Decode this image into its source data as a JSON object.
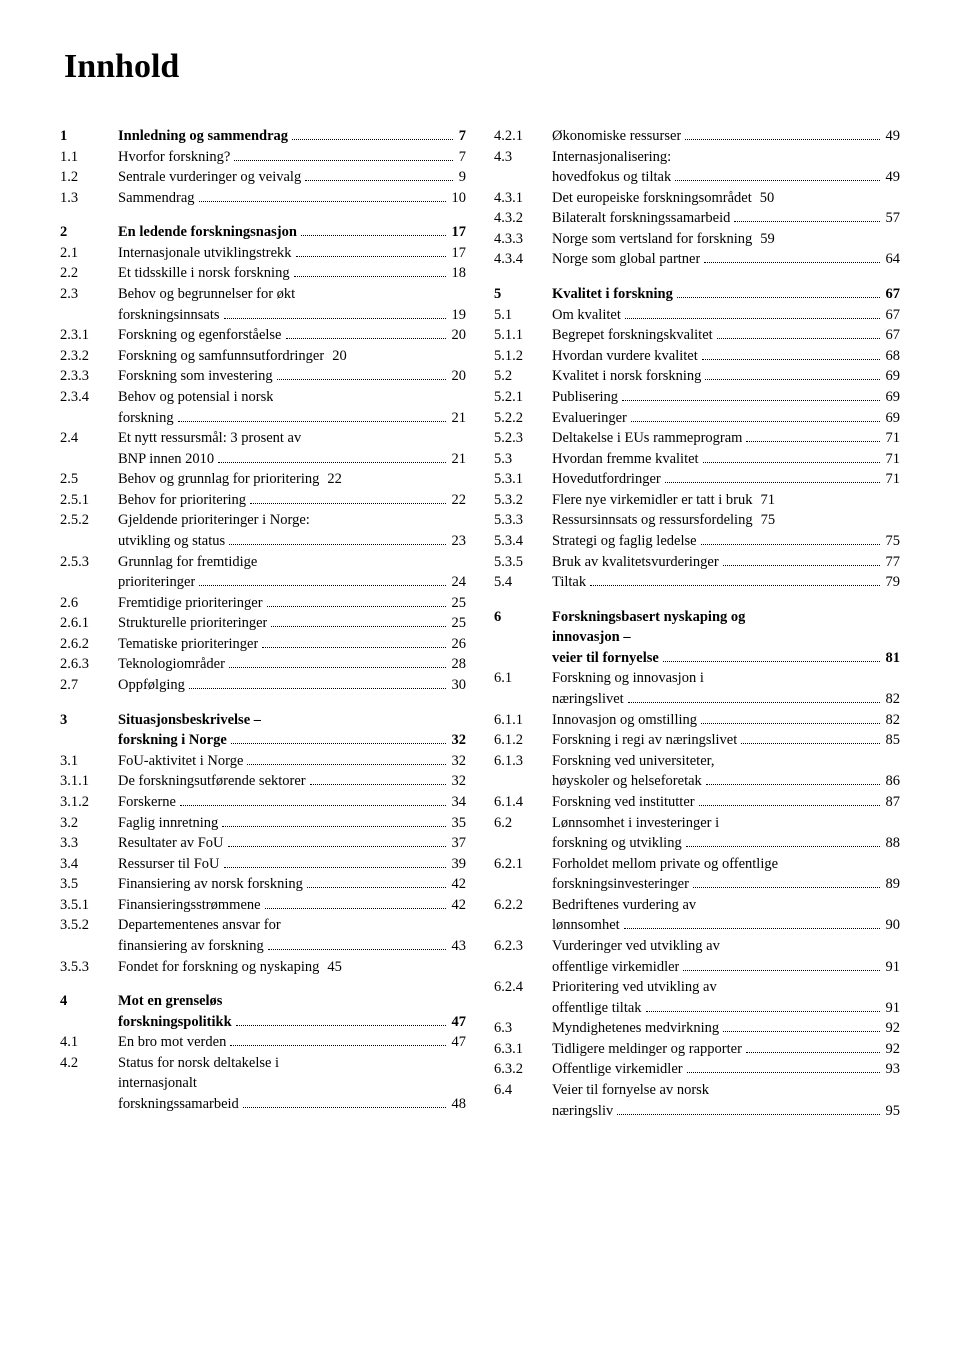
{
  "title": "Innhold",
  "left": [
    {
      "n": "1",
      "t": "Innledning og sammendrag",
      "p": "7",
      "b": true
    },
    {
      "n": "1.1",
      "t": "Hvorfor forskning?",
      "p": "7"
    },
    {
      "n": "1.2",
      "t": "Sentrale vurderinger og veivalg",
      "p": "9"
    },
    {
      "n": "1.3",
      "t": "Sammendrag",
      "p": "10"
    },
    {
      "sp": true
    },
    {
      "n": "2",
      "t": "En ledende forskningsnasjon",
      "p": "17",
      "b": true
    },
    {
      "n": "2.1",
      "t": "Internasjonale utviklingstrekk",
      "p": "17"
    },
    {
      "n": "2.2",
      "t": "Et tidsskille i norsk forskning",
      "p": "18"
    },
    {
      "n": "2.3",
      "t": "Behov og begrunnelser for økt"
    },
    {
      "cont": true,
      "t": "forskningsinnsats",
      "p": "19"
    },
    {
      "n": "2.3.1",
      "t": "Forskning og egenforståelse",
      "p": "20"
    },
    {
      "n": "2.3.2",
      "t": "Forskning og samfunnsutfordringer",
      "p": "20",
      "nd": true
    },
    {
      "n": "2.3.3",
      "t": "Forskning som investering",
      "p": "20"
    },
    {
      "n": "2.3.4",
      "t": "Behov og potensial i norsk"
    },
    {
      "cont": true,
      "t": "forskning",
      "p": "21"
    },
    {
      "n": "2.4",
      "t": "Et nytt ressursmål: 3 prosent av"
    },
    {
      "cont": true,
      "t": "BNP innen 2010",
      "p": "21"
    },
    {
      "n": "2.5",
      "t": "Behov og grunnlag for prioritering",
      "p": "22",
      "nd": true
    },
    {
      "n": "2.5.1",
      "t": "Behov for prioritering",
      "p": "22"
    },
    {
      "n": "2.5.2",
      "t": "Gjeldende prioriteringer i Norge:"
    },
    {
      "cont": true,
      "t": "utvikling og status",
      "p": "23"
    },
    {
      "n": "2.5.3",
      "t": "Grunnlag for fremtidige"
    },
    {
      "cont": true,
      "t": "prioriteringer",
      "p": "24"
    },
    {
      "n": "2.6",
      "t": "Fremtidige prioriteringer",
      "p": "25"
    },
    {
      "n": "2.6.1",
      "t": "Strukturelle prioriteringer",
      "p": "25"
    },
    {
      "n": "2.6.2",
      "t": "Tematiske prioriteringer",
      "p": "26"
    },
    {
      "n": "2.6.3",
      "t": "Teknologiområder",
      "p": "28"
    },
    {
      "n": "2.7",
      "t": "Oppfølging",
      "p": "30"
    },
    {
      "sp": true
    },
    {
      "n": "3",
      "t": "Situasjonsbeskrivelse –",
      "b": true
    },
    {
      "cont": true,
      "t": "forskning i Norge",
      "p": "32",
      "b": true
    },
    {
      "n": "3.1",
      "t": "FoU-aktivitet i Norge",
      "p": "32"
    },
    {
      "n": "3.1.1",
      "t": "De forskningsutførende sektorer",
      "p": "32"
    },
    {
      "n": "3.1.2",
      "t": "Forskerne",
      "p": "34"
    },
    {
      "n": "3.2",
      "t": "Faglig innretning",
      "p": "35"
    },
    {
      "n": "3.3",
      "t": "Resultater av FoU",
      "p": "37"
    },
    {
      "n": "3.4",
      "t": "Ressurser til FoU",
      "p": "39"
    },
    {
      "n": "3.5",
      "t": "Finansiering av norsk forskning",
      "p": "42"
    },
    {
      "n": "3.5.1",
      "t": "Finansieringsstrømmene",
      "p": "42"
    },
    {
      "n": "3.5.2",
      "t": "Departementenes ansvar for"
    },
    {
      "cont": true,
      "t": "finansiering av forskning",
      "p": "43"
    },
    {
      "n": "3.5.3",
      "t": "Fondet for forskning og nyskaping",
      "p": "45",
      "nd": true
    },
    {
      "sp": true
    },
    {
      "n": "4",
      "t": "Mot en grenseløs",
      "b": true
    },
    {
      "cont": true,
      "t": "forskningspolitikk",
      "p": "47",
      "b": true
    },
    {
      "n": "4.1",
      "t": "En bro mot verden",
      "p": "47"
    },
    {
      "n": "4.2",
      "t": "Status for norsk deltakelse i"
    },
    {
      "cont": true,
      "t": "internasjonalt"
    },
    {
      "cont": true,
      "t": "forskningssamarbeid",
      "p": "48"
    }
  ],
  "right": [
    {
      "n": "4.2.1",
      "t": "Økonomiske ressurser",
      "p": "49"
    },
    {
      "n": "4.3",
      "t": "Internasjonalisering:"
    },
    {
      "cont": true,
      "t": "hovedfokus og tiltak",
      "p": "49"
    },
    {
      "n": "4.3.1",
      "t": "Det europeiske forskningsområdet",
      "p": "50",
      "nd": true
    },
    {
      "n": "4.3.2",
      "t": "Bilateralt forskningssamarbeid",
      "p": "57"
    },
    {
      "n": "4.3.3",
      "t": "Norge som vertsland for forskning",
      "p": "59",
      "nd": true
    },
    {
      "n": "4.3.4",
      "t": "Norge som global partner",
      "p": "64"
    },
    {
      "sp": true
    },
    {
      "n": "5",
      "t": "Kvalitet i forskning",
      "p": "67",
      "b": true
    },
    {
      "n": "5.1",
      "t": "Om kvalitet",
      "p": "67"
    },
    {
      "n": "5.1.1",
      "t": "Begrepet forskningskvalitet",
      "p": "67"
    },
    {
      "n": "5.1.2",
      "t": "Hvordan vurdere kvalitet",
      "p": "68"
    },
    {
      "n": "5.2",
      "t": "Kvalitet i norsk forskning",
      "p": "69"
    },
    {
      "n": "5.2.1",
      "t": "Publisering",
      "p": "69"
    },
    {
      "n": "5.2.2",
      "t": "Evalueringer",
      "p": "69"
    },
    {
      "n": "5.2.3",
      "t": "Deltakelse i EUs rammeprogram",
      "p": "71"
    },
    {
      "n": "5.3",
      "t": "Hvordan fremme kvalitet",
      "p": "71"
    },
    {
      "n": "5.3.1",
      "t": "Hovedutfordringer",
      "p": "71"
    },
    {
      "n": "5.3.2",
      "t": "Flere nye virkemidler er tatt i bruk",
      "p": "71",
      "nd": true
    },
    {
      "n": "5.3.3",
      "t": "Ressursinnsats og ressursfordeling",
      "p": "75",
      "nd": true
    },
    {
      "n": "5.3.4",
      "t": "Strategi og faglig ledelse",
      "p": "75"
    },
    {
      "n": "5.3.5",
      "t": "Bruk av kvalitetsvurderinger",
      "p": "77"
    },
    {
      "n": "5.4",
      "t": "Tiltak",
      "p": "79"
    },
    {
      "sp": true
    },
    {
      "n": "6",
      "t": "Forskningsbasert nyskaping og",
      "b": true
    },
    {
      "cont": true,
      "t": "innovasjon –",
      "b": true
    },
    {
      "cont": true,
      "t": "veier til fornyelse",
      "p": "81",
      "b": true
    },
    {
      "n": "6.1",
      "t": "Forskning og innovasjon i"
    },
    {
      "cont": true,
      "t": "næringslivet",
      "p": "82"
    },
    {
      "n": "6.1.1",
      "t": "Innovasjon og omstilling",
      "p": "82"
    },
    {
      "n": "6.1.2",
      "t": "Forskning i regi av næringslivet",
      "p": "85"
    },
    {
      "n": "6.1.3",
      "t": "Forskning ved universiteter,"
    },
    {
      "cont": true,
      "t": "høyskoler og helseforetak",
      "p": "86"
    },
    {
      "n": "6.1.4",
      "t": "Forskning ved institutter",
      "p": "87"
    },
    {
      "n": "6.2",
      "t": "Lønnsomhet i investeringer i"
    },
    {
      "cont": true,
      "t": "forskning og utvikling",
      "p": "88"
    },
    {
      "n": "6.2.1",
      "t": "Forholdet mellom private og offentlige",
      "nd": true
    },
    {
      "cont": true,
      "t": "forskningsinvesteringer",
      "p": "89"
    },
    {
      "n": "6.2.2",
      "t": "Bedriftenes vurdering av"
    },
    {
      "cont": true,
      "t": "lønnsomhet",
      "p": "90"
    },
    {
      "n": "6.2.3",
      "t": "Vurderinger ved utvikling av"
    },
    {
      "cont": true,
      "t": "offentlige virkemidler",
      "p": "91"
    },
    {
      "n": "6.2.4",
      "t": "Prioritering ved utvikling av"
    },
    {
      "cont": true,
      "t": "offentlige tiltak",
      "p": "91"
    },
    {
      "n": "6.3",
      "t": "Myndighetenes medvirkning",
      "p": "92"
    },
    {
      "n": "6.3.1",
      "t": "Tidligere meldinger og rapporter",
      "p": "92"
    },
    {
      "n": "6.3.2",
      "t": "Offentlige virkemidler",
      "p": "93"
    },
    {
      "n": "6.4",
      "t": "Veier til fornyelse av norsk"
    },
    {
      "cont": true,
      "t": "næringsliv",
      "p": "95"
    }
  ]
}
